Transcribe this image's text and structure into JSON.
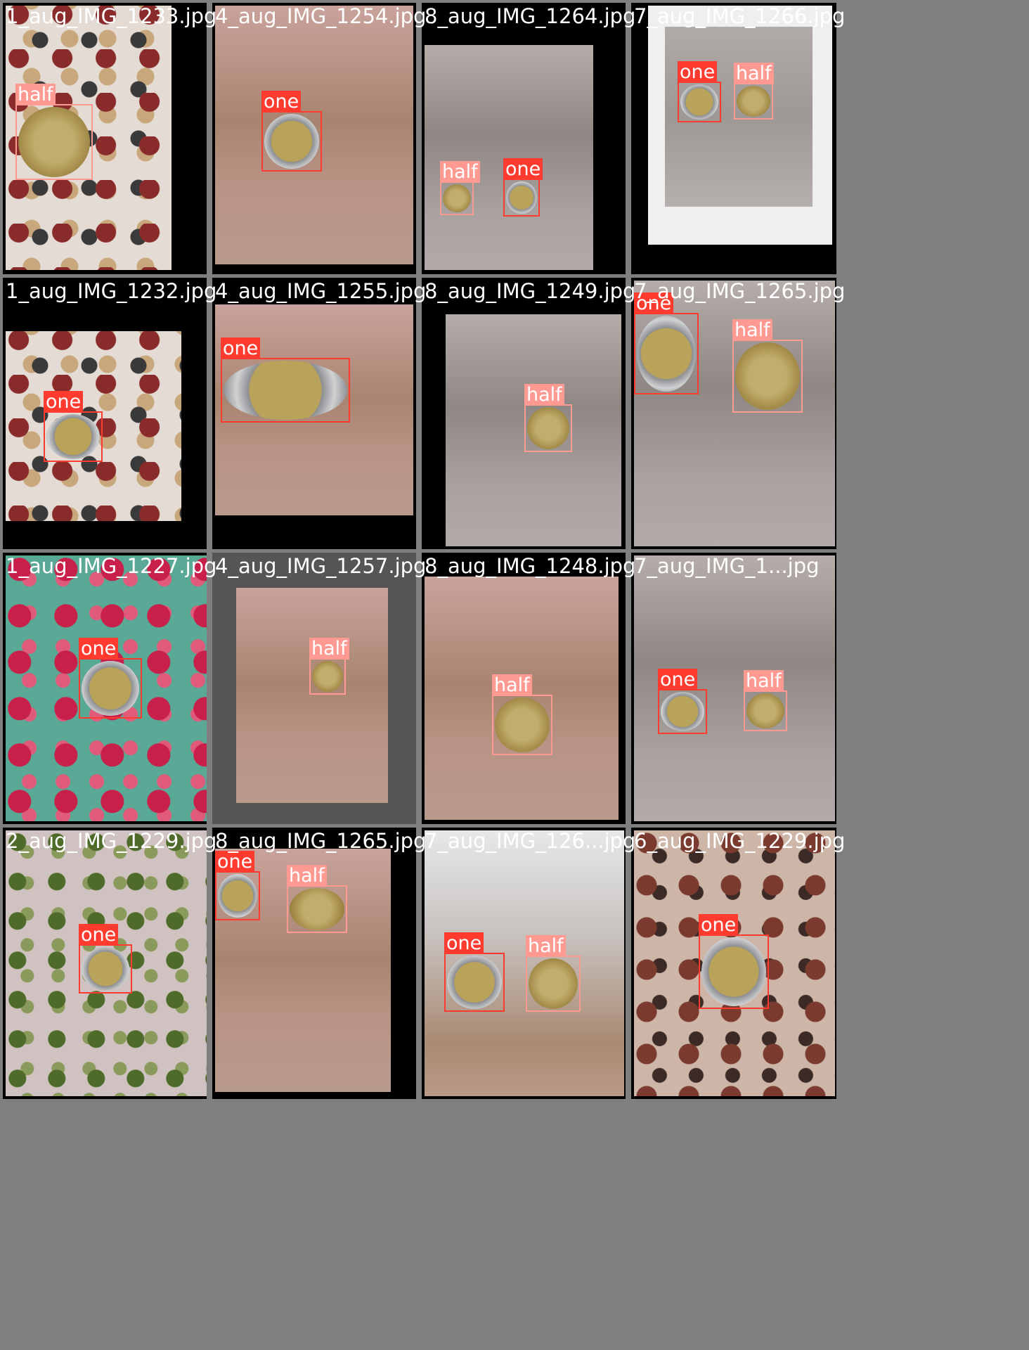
{
  "classes": {
    "one": {
      "label": "one",
      "color": "#ff3b30"
    },
    "half": {
      "label": "half",
      "color": "#ff9a93"
    }
  },
  "tiles": [
    {
      "filename": "1_aug_IMG_1233.jpg",
      "detections": [
        {
          "cls": "half"
        }
      ]
    },
    {
      "filename": "4_aug_IMG_1254.jpg",
      "detections": [
        {
          "cls": "one"
        }
      ]
    },
    {
      "filename": "8_aug_IMG_1264.jpg",
      "detections": [
        {
          "cls": "half"
        },
        {
          "cls": "one"
        }
      ]
    },
    {
      "filename": "7_aug_IMG_1266.jpg",
      "detections": [
        {
          "cls": "one"
        },
        {
          "cls": "half"
        }
      ]
    },
    {
      "filename": "1_aug_IMG_1232.jpg",
      "detections": [
        {
          "cls": "one"
        }
      ]
    },
    {
      "filename": "4_aug_IMG_1255.jpg",
      "detections": [
        {
          "cls": "one"
        }
      ]
    },
    {
      "filename": "8_aug_IMG_1249.jpg",
      "detections": [
        {
          "cls": "half"
        }
      ]
    },
    {
      "filename": "7_aug_IMG_1265.jpg",
      "detections": [
        {
          "cls": "one"
        },
        {
          "cls": "half"
        }
      ]
    },
    {
      "filename": "1_aug_IMG_1227.jpg",
      "detections": [
        {
          "cls": "one"
        }
      ]
    },
    {
      "filename": "4_aug_IMG_1257.jpg",
      "detections": [
        {
          "cls": "half"
        }
      ]
    },
    {
      "filename": "8_aug_IMG_1248.jpg",
      "detections": [
        {
          "cls": "half"
        }
      ]
    },
    {
      "filename": "7_aug_IMG_1...jpg",
      "detections": [
        {
          "cls": "one"
        },
        {
          "cls": "half"
        }
      ]
    },
    {
      "filename": "2_aug_IMG_1229.jpg",
      "detections": [
        {
          "cls": "one"
        }
      ]
    },
    {
      "filename": "8_aug_IMG_1265.jpg",
      "detections": [
        {
          "cls": "one"
        },
        {
          "cls": "half"
        }
      ]
    },
    {
      "filename": "7_aug_IMG_126...jpg",
      "detections": [
        {
          "cls": "one"
        },
        {
          "cls": "half"
        }
      ]
    },
    {
      "filename": "6_aug_IMG_1229.jpg",
      "detections": [
        {
          "cls": "one"
        }
      ]
    }
  ]
}
